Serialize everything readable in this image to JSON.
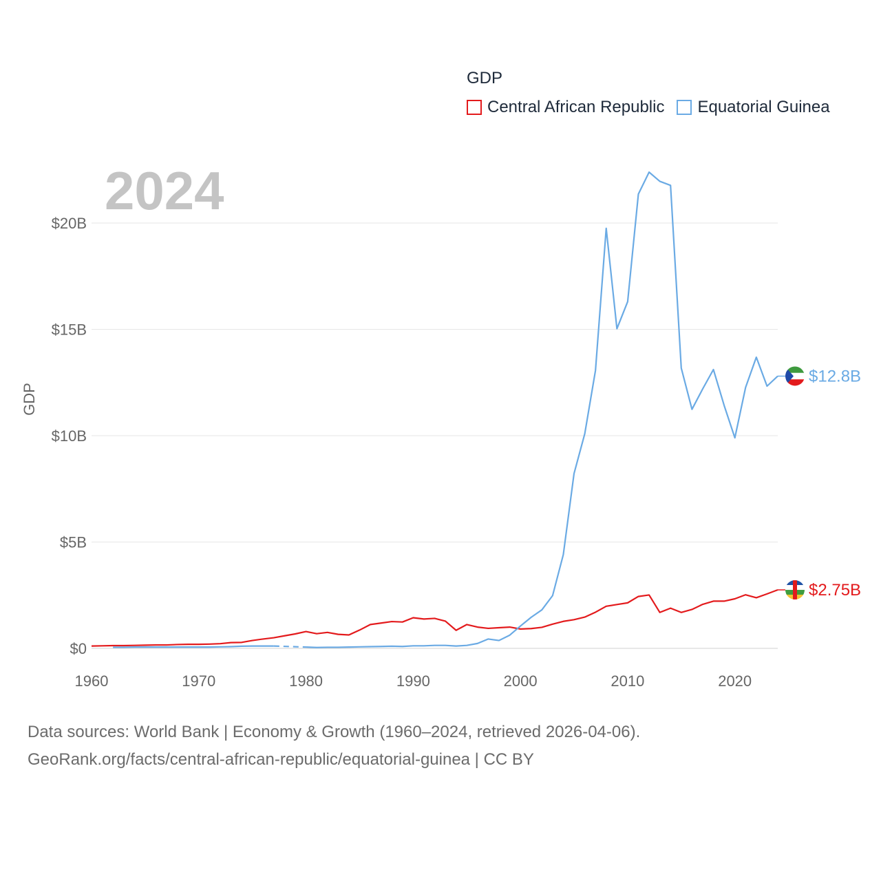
{
  "legend": {
    "title": "GDP",
    "items": [
      {
        "label": "Central African Republic",
        "color": "#e31a1c"
      },
      {
        "label": "Equatorial Guinea",
        "color": "#6aaae4"
      }
    ]
  },
  "year_label": "2024",
  "footer": {
    "line1": "Data sources: World Bank | Economy & Growth (1960–2024, retrieved 2026-04-06).",
    "line2": "GeoRank.org/facts/central-african-republic/equatorial-guinea | CC BY"
  },
  "chart_data": {
    "type": "line",
    "title": "GDP",
    "ylabel": "GDP",
    "xlabel": "",
    "xlim": [
      1960,
      2024
    ],
    "ylim": [
      0,
      22.5
    ],
    "x_ticks": [
      {
        "value": 1960,
        "label": "1960"
      },
      {
        "value": 1970,
        "label": "1970"
      },
      {
        "value": 1980,
        "label": "1980"
      },
      {
        "value": 1990,
        "label": "1990"
      },
      {
        "value": 2000,
        "label": "2000"
      },
      {
        "value": 2010,
        "label": "2010"
      },
      {
        "value": 2020,
        "label": "2020"
      }
    ],
    "y_ticks": [
      {
        "value": 0,
        "label": "$0"
      },
      {
        "value": 5,
        "label": "$5B"
      },
      {
        "value": 10,
        "label": "$10B"
      },
      {
        "value": 15,
        "label": "$15B"
      },
      {
        "value": 20,
        "label": "$20B"
      }
    ],
    "units": "billions USD",
    "series": [
      {
        "name": "Central African Republic",
        "color": "#e31a1c",
        "end_label": "$2.75B",
        "x": [
          1960,
          1961,
          1962,
          1963,
          1964,
          1965,
          1966,
          1967,
          1968,
          1969,
          1970,
          1971,
          1972,
          1973,
          1974,
          1975,
          1976,
          1977,
          1978,
          1979,
          1980,
          1981,
          1982,
          1983,
          1984,
          1985,
          1986,
          1987,
          1988,
          1989,
          1990,
          1991,
          1992,
          1993,
          1994,
          1995,
          1996,
          1997,
          1998,
          1999,
          2000,
          2001,
          2002,
          2003,
          2004,
          2005,
          2006,
          2007,
          2008,
          2009,
          2010,
          2011,
          2012,
          2013,
          2014,
          2015,
          2016,
          2017,
          2018,
          2019,
          2020,
          2021,
          2022,
          2023,
          2024
        ],
        "values": [
          0.11,
          0.12,
          0.13,
          0.13,
          0.14,
          0.15,
          0.16,
          0.16,
          0.18,
          0.19,
          0.19,
          0.2,
          0.22,
          0.27,
          0.28,
          0.37,
          0.44,
          0.5,
          0.59,
          0.68,
          0.79,
          0.69,
          0.75,
          0.66,
          0.63,
          0.86,
          1.12,
          1.19,
          1.26,
          1.24,
          1.44,
          1.38,
          1.41,
          1.28,
          0.85,
          1.12,
          1.0,
          0.94,
          0.97,
          1.0,
          0.91,
          0.93,
          0.99,
          1.14,
          1.27,
          1.35,
          1.47,
          1.7,
          1.98,
          2.06,
          2.14,
          2.44,
          2.51,
          1.69,
          1.89,
          1.69,
          1.83,
          2.07,
          2.22,
          2.22,
          2.33,
          2.52,
          2.38,
          2.56,
          2.75
        ]
      },
      {
        "name": "Equatorial Guinea",
        "color": "#6aaae4",
        "end_label": "$12.8B",
        "x": [
          1962,
          1963,
          1964,
          1965,
          1966,
          1967,
          1968,
          1969,
          1970,
          1971,
          1972,
          1973,
          1974,
          1975,
          1976,
          1977,
          1978,
          1979,
          1980,
          1981,
          1982,
          1983,
          1984,
          1985,
          1986,
          1987,
          1988,
          1989,
          1990,
          1991,
          1992,
          1993,
          1994,
          1995,
          1996,
          1997,
          1998,
          1999,
          2000,
          2001,
          2002,
          2003,
          2004,
          2005,
          2006,
          2007,
          2008,
          2009,
          2010,
          2011,
          2012,
          2013,
          2014,
          2015,
          2016,
          2017,
          2018,
          2019,
          2020,
          2021,
          2022,
          2023,
          2024
        ],
        "values": [
          0.05,
          0.05,
          0.06,
          0.06,
          0.06,
          0.06,
          0.06,
          0.06,
          0.06,
          0.06,
          0.07,
          0.08,
          0.1,
          0.11,
          0.11,
          0.11,
          null,
          null,
          0.06,
          0.04,
          0.05,
          0.05,
          0.06,
          0.07,
          0.08,
          0.09,
          0.1,
          0.09,
          0.12,
          0.12,
          0.14,
          0.14,
          0.11,
          0.14,
          0.23,
          0.44,
          0.37,
          0.62,
          1.05,
          1.46,
          1.81,
          2.48,
          4.41,
          8.22,
          10.09,
          13.07,
          19.75,
          15.03,
          16.3,
          21.36,
          22.39,
          21.96,
          21.77,
          13.18,
          11.24,
          12.2,
          13.11,
          11.42,
          9.9,
          12.27,
          13.69,
          12.33,
          12.8
        ]
      }
    ]
  }
}
